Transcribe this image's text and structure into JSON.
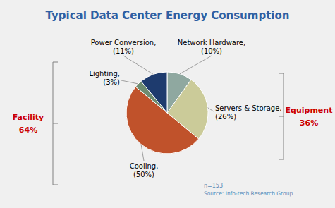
{
  "chart_data": {
    "type": "pie",
    "title": "Typical Data Center Energy Consumption",
    "categories": [
      "Network Hardware,\n(10%)",
      "Servers & Storage,\n(26%)",
      "Cooling,\n(50%)",
      "Lighting,\n(3%)",
      "Power Conversion,\n(11%)"
    ],
    "values": [
      10,
      26,
      50,
      3,
      11
    ],
    "colors": [
      "#8FA8A0",
      "#CBCB99",
      "#C0522B",
      "#6E8C70",
      "#1E3B6E"
    ],
    "groups": [
      {
        "label": "Facility",
        "value": 64,
        "value_label": "64%"
      },
      {
        "label": "Equipment",
        "value": 36,
        "value_label": "36%"
      }
    ],
    "annotations": [
      "n=153",
      "Source: Info-tech Research Group"
    ]
  }
}
